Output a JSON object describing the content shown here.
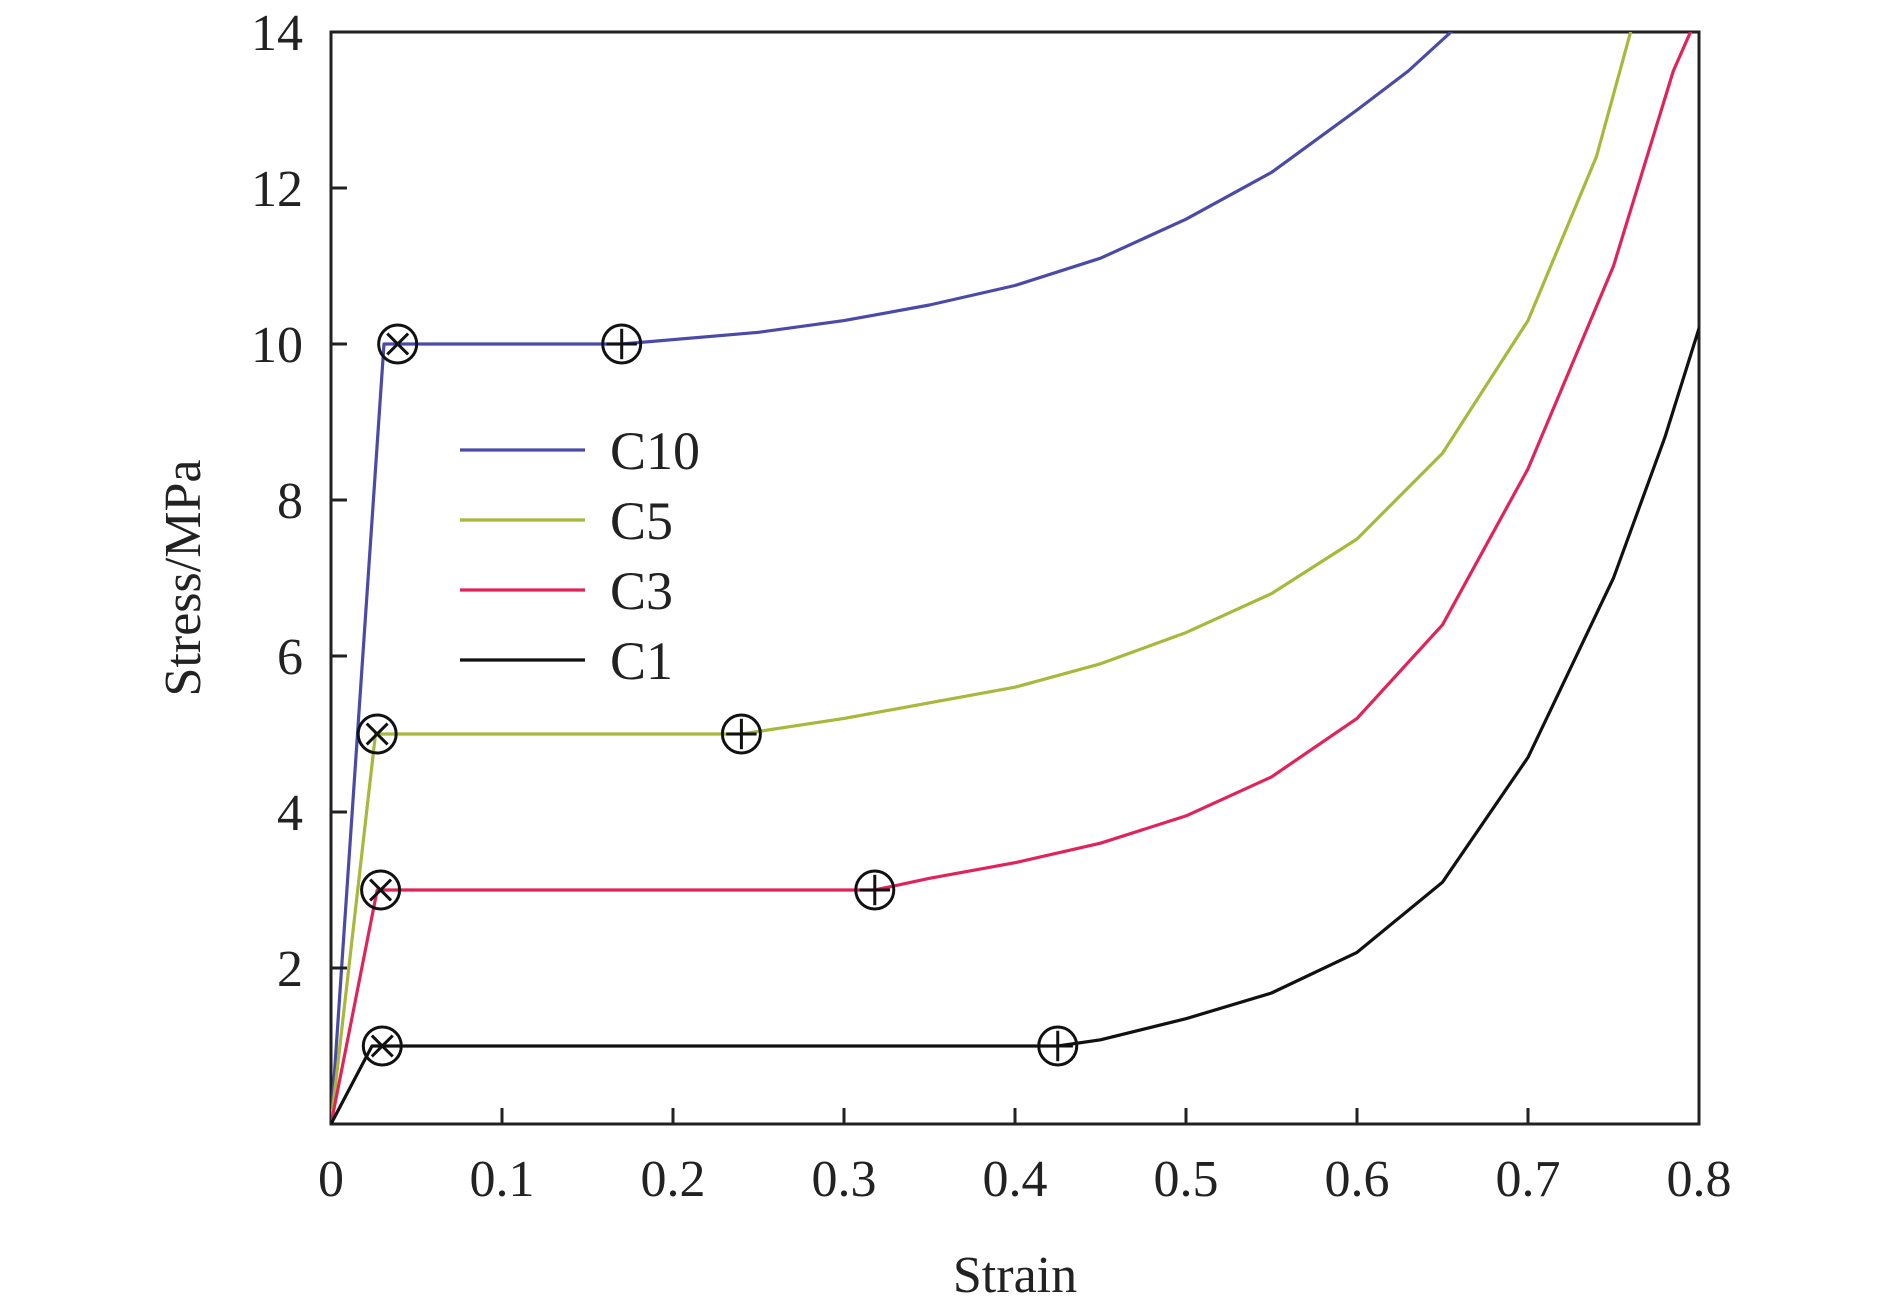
{
  "chart_data": {
    "type": "line",
    "title": "",
    "xlabel": "Strain",
    "ylabel": "Stress/MPa",
    "xlim": [
      0,
      0.8
    ],
    "ylim": [
      0,
      14
    ],
    "x_ticks": [
      0,
      0.1,
      0.2,
      0.3,
      0.4,
      0.5,
      0.6,
      0.7,
      0.8
    ],
    "x_tick_labels": [
      "0",
      "0.1",
      "0.2",
      "0.3",
      "0.4",
      "0.5",
      "0.6",
      "0.7",
      "0.8"
    ],
    "y_ticks": [
      2,
      4,
      6,
      8,
      10,
      12,
      14
    ],
    "y_tick_labels": [
      "2",
      "4",
      "6",
      "8",
      "10",
      "12",
      "14"
    ],
    "grid": false,
    "legend_position": "center-left",
    "series": [
      {
        "name": "C10",
        "color": "#4a4aa8",
        "points": [
          [
            0,
            0
          ],
          [
            0.031,
            10
          ],
          [
            0.17,
            10
          ],
          [
            0.25,
            10.15
          ],
          [
            0.3,
            10.3
          ],
          [
            0.35,
            10.5
          ],
          [
            0.4,
            10.75
          ],
          [
            0.45,
            11.1
          ],
          [
            0.5,
            11.6
          ],
          [
            0.55,
            12.2
          ],
          [
            0.6,
            13.0
          ],
          [
            0.63,
            13.5
          ],
          [
            0.655,
            14.0
          ]
        ],
        "yield_marker": [
          0.039,
          10
        ],
        "densification_marker": [
          0.17,
          10
        ]
      },
      {
        "name": "C5",
        "color": "#a8b83a",
        "points": [
          [
            0,
            0
          ],
          [
            0.026,
            5
          ],
          [
            0.24,
            5
          ],
          [
            0.3,
            5.2
          ],
          [
            0.35,
            5.4
          ],
          [
            0.4,
            5.6
          ],
          [
            0.45,
            5.9
          ],
          [
            0.5,
            6.3
          ],
          [
            0.55,
            6.8
          ],
          [
            0.6,
            7.5
          ],
          [
            0.65,
            8.6
          ],
          [
            0.7,
            10.3
          ],
          [
            0.74,
            12.4
          ],
          [
            0.76,
            14.0
          ]
        ],
        "yield_marker": [
          0.027,
          5
        ],
        "densification_marker": [
          0.24,
          5
        ]
      },
      {
        "name": "C3",
        "color": "#e0245a",
        "points": [
          [
            0,
            0
          ],
          [
            0.027,
            3
          ],
          [
            0.318,
            3
          ],
          [
            0.35,
            3.15
          ],
          [
            0.4,
            3.35
          ],
          [
            0.45,
            3.6
          ],
          [
            0.5,
            3.95
          ],
          [
            0.55,
            4.45
          ],
          [
            0.6,
            5.2
          ],
          [
            0.65,
            6.4
          ],
          [
            0.7,
            8.4
          ],
          [
            0.75,
            11.0
          ],
          [
            0.785,
            13.5
          ],
          [
            0.795,
            14.0
          ]
        ],
        "yield_marker": [
          0.029,
          3
        ],
        "densification_marker": [
          0.318,
          3
        ]
      },
      {
        "name": "C1",
        "color": "#111111",
        "points": [
          [
            0,
            0
          ],
          [
            0.024,
            1
          ],
          [
            0.425,
            1
          ],
          [
            0.45,
            1.08
          ],
          [
            0.5,
            1.35
          ],
          [
            0.55,
            1.68
          ],
          [
            0.6,
            2.2
          ],
          [
            0.65,
            3.1
          ],
          [
            0.7,
            4.7
          ],
          [
            0.75,
            7.0
          ],
          [
            0.78,
            8.8
          ],
          [
            0.8,
            10.2
          ]
        ],
        "yield_marker": [
          0.03,
          1
        ],
        "densification_marker": [
          0.425,
          1
        ]
      }
    ]
  }
}
